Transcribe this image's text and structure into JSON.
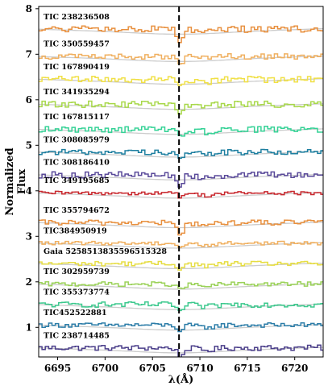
{
  "chart_data": {
    "type": "line",
    "title": "",
    "xlabel": "λ(Å)",
    "ylabel_lines": [
      "Normalized",
      "Flux"
    ],
    "xlim": [
      6693,
      6723
    ],
    "ylim": [
      0.35,
      8.05
    ],
    "x_ticks": [
      6695,
      6700,
      6705,
      6710,
      6715,
      6720
    ],
    "x_tick_labels": [
      "6695",
      "6700",
      "6705",
      "6710",
      "6715",
      "6720"
    ],
    "y_ticks": [
      1,
      2,
      3,
      4,
      5,
      6,
      7,
      8
    ],
    "y_tick_labels": [
      "1",
      "2",
      "3",
      "4",
      "5",
      "6",
      "7",
      "8"
    ],
    "vline_x": 6707.8,
    "vline_style": "dashed",
    "model_color": "#cccccc",
    "series": [
      {
        "name": "TIC 238714485",
        "offset": 0.55,
        "color": "#4b3f8a",
        "depth": 0.22,
        "noise": 0.06
      },
      {
        "name": "TIC452522881",
        "offset": 1.05,
        "color": "#2c7da8",
        "depth": 0.14,
        "noise": 0.05
      },
      {
        "name": "TIC 355373774",
        "offset": 1.5,
        "color": "#3dc98e",
        "depth": 0.16,
        "noise": 0.06
      },
      {
        "name": "TIC 302959739",
        "offset": 1.95,
        "color": "#9bd259",
        "depth": 0.14,
        "noise": 0.05
      },
      {
        "name": "Gaia 5258513835596515328",
        "offset": 2.4,
        "color": "#e6dd43",
        "depth": 0.12,
        "noise": 0.05
      },
      {
        "name": "TIC384950919",
        "offset": 2.85,
        "color": "#f0b060",
        "depth": 0.1,
        "noise": 0.04
      },
      {
        "name": "TIC 355794672",
        "offset": 3.3,
        "color": "#e8903f",
        "depth": 0.32,
        "noise": 0.06
      },
      {
        "name": "TIC 349195685",
        "offset": 3.95,
        "color": "#c8282e",
        "depth": 0.08,
        "noise": 0.04
      },
      {
        "name": "TIC 308186410",
        "offset": 4.35,
        "color": "#5a4a9a",
        "depth": 0.26,
        "noise": 0.07
      },
      {
        "name": "TIC 308085979",
        "offset": 4.85,
        "color": "#1e7fa0",
        "depth": 0.16,
        "noise": 0.06
      },
      {
        "name": "TIC 167815117",
        "offset": 5.35,
        "color": "#35d296",
        "depth": 0.2,
        "noise": 0.07
      },
      {
        "name": "TIC 341935294",
        "offset": 5.9,
        "color": "#a8d84a",
        "depth": 0.18,
        "noise": 0.07
      },
      {
        "name": "TIC 167890419",
        "offset": 6.45,
        "color": "#f0e046",
        "depth": 0.14,
        "noise": 0.07
      },
      {
        "name": "TIC 350559457",
        "offset": 6.95,
        "color": "#f0b060",
        "depth": 0.2,
        "noise": 0.06
      },
      {
        "name": "TIC 238236508",
        "offset": 7.55,
        "color": "#e8903f",
        "depth": 0.24,
        "noise": 0.07
      }
    ]
  }
}
